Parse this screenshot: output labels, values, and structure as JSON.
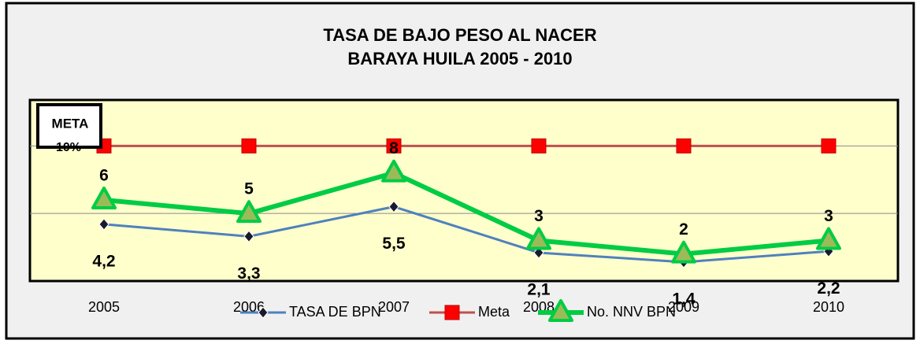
{
  "chart_data": {
    "type": "line",
    "title": "TASA DE BAJO PESO AL NACER",
    "subtitle": "BARAYA HUILA 2005 - 2010",
    "annotation": {
      "title": "META",
      "text": "10%"
    },
    "categories": [
      "2005",
      "2006",
      "2007",
      "2008",
      "2009",
      "2010"
    ],
    "ylim": [
      0,
      13.4
    ],
    "yticks": [
      0,
      5,
      10
    ],
    "grid": true,
    "series": [
      {
        "name": "TASA DE BPN",
        "color": "#4f81bd",
        "marker": "diamond",
        "values": [
          4.2,
          3.3,
          5.5,
          2.1,
          1.4,
          2.2
        ],
        "value_labels": [
          "4,2",
          "3,3",
          "5,5",
          "2,1",
          "1,4",
          "2,2"
        ]
      },
      {
        "name": "Meta",
        "color": "#c0504d",
        "marker": "square",
        "values": [
          10,
          10,
          10,
          10,
          10,
          10
        ]
      },
      {
        "name": "No. NNV BPN",
        "color": "#00cc44",
        "marker": "triangle",
        "values": [
          6,
          5,
          8,
          3,
          2,
          3
        ]
      }
    ]
  }
}
